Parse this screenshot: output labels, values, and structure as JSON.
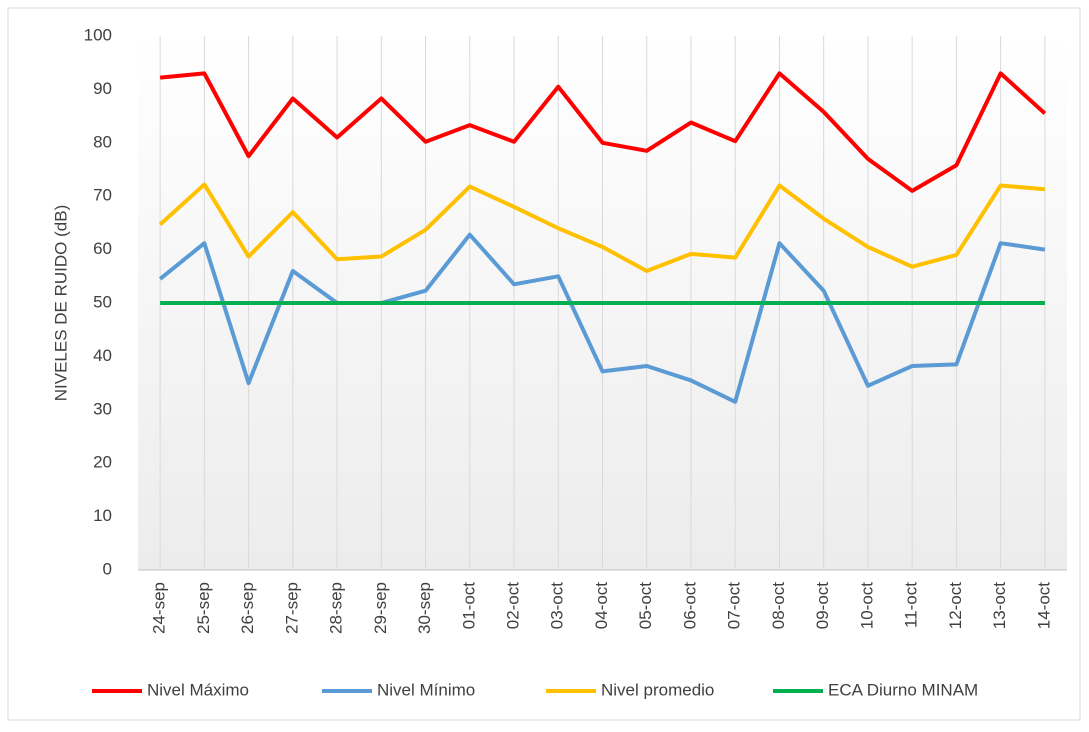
{
  "chart_data": {
    "type": "line",
    "ylabel": "NIVELES DE RUIDO (dB)",
    "categories": [
      "24-sep",
      "25-sep",
      "26-sep",
      "27-sep",
      "28-sep",
      "29-sep",
      "30-sep",
      "01-oct",
      "02-oct",
      "03-oct",
      "04-oct",
      "05-oct",
      "06-oct",
      "07-oct",
      "08-oct",
      "09-oct",
      "10-oct",
      "11-oct",
      "12-oct",
      "13-oct",
      "14-oct"
    ],
    "series": [
      {
        "name": "Nivel Máximo",
        "color": "#ff0000",
        "values": [
          92.2,
          93,
          77.5,
          88.3,
          81,
          88.3,
          80.2,
          83.3,
          80.2,
          90.5,
          80,
          78.5,
          83.8,
          80.3,
          93,
          85.8,
          77,
          71,
          75.8,
          93,
          85.5
        ]
      },
      {
        "name": "Nivel Mínimo",
        "color": "#5b9bd5",
        "values": [
          54.5,
          61.2,
          35,
          56,
          50,
          50,
          52.3,
          62.8,
          53.5,
          55,
          37.2,
          38.2,
          35.5,
          31.5,
          61.2,
          52.3,
          34.5,
          38.2,
          38.5,
          61.2,
          60
        ]
      },
      {
        "name": "Nivel promedio",
        "color": "#ffc000",
        "values": [
          64.7,
          72.2,
          58.7,
          67,
          58.2,
          58.7,
          63.7,
          71.8,
          68,
          64,
          60.5,
          56,
          59.2,
          58.5,
          72,
          65.8,
          60.5,
          56.8,
          59,
          72,
          71.3
        ]
      },
      {
        "name": "ECA Diurno MINAM",
        "color": "#00b050",
        "values": [
          50,
          50,
          50,
          50,
          50,
          50,
          50,
          50,
          50,
          50,
          50,
          50,
          50,
          50,
          50,
          50,
          50,
          50,
          50,
          50,
          50
        ]
      }
    ],
    "ylim": [
      0,
      100
    ],
    "yticks": [
      0,
      10,
      20,
      30,
      40,
      50,
      60,
      70,
      80,
      90,
      100
    ],
    "grid": true,
    "legend": "bottom"
  }
}
